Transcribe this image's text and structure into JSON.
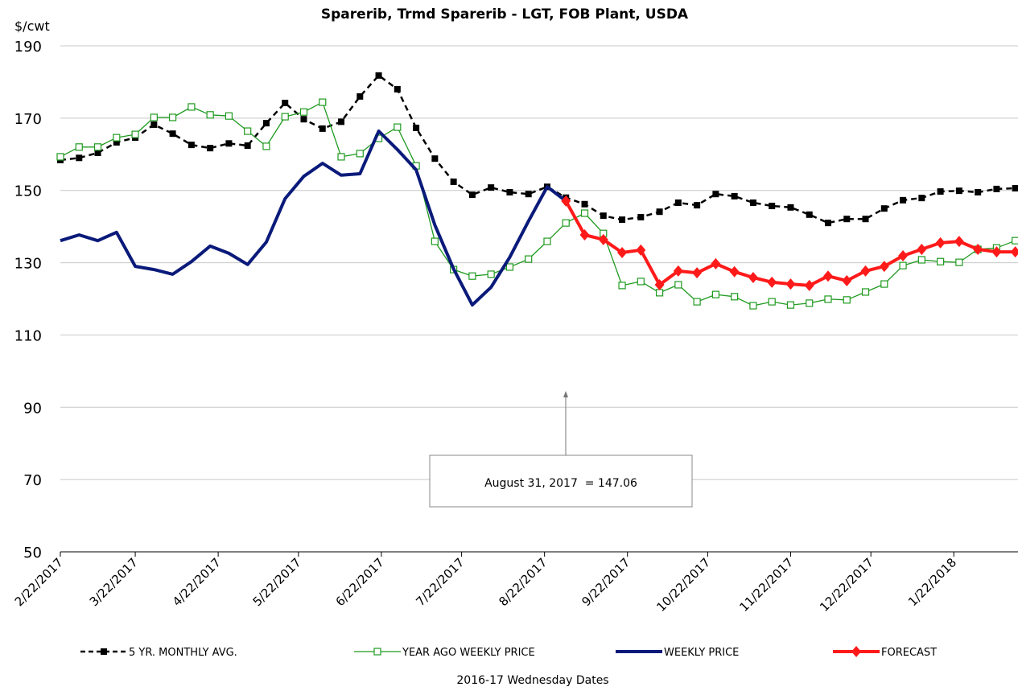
{
  "chart_data": {
    "type": "line",
    "title": "Sparerib, Trmd Sparerib - LGT, FOB Plant, USDA",
    "y_unit_label": "$/cwt",
    "x_axis_title": "2016-17 Wednesday Dates",
    "annotation": "August 31, 2017  = 147.06",
    "x": [
      "2017-02-22",
      "2017-03-01",
      "2017-03-08",
      "2017-03-15",
      "2017-03-22",
      "2017-03-29",
      "2017-04-05",
      "2017-04-12",
      "2017-04-19",
      "2017-04-26",
      "2017-05-03",
      "2017-05-10",
      "2017-05-17",
      "2017-05-24",
      "2017-05-31",
      "2017-06-07",
      "2017-06-14",
      "2017-06-21",
      "2017-06-28",
      "2017-07-05",
      "2017-07-12",
      "2017-07-19",
      "2017-07-26",
      "2017-08-02",
      "2017-08-09",
      "2017-08-16",
      "2017-08-23",
      "2017-08-30",
      "2017-09-06",
      "2017-09-13",
      "2017-09-20",
      "2017-09-27",
      "2017-10-04",
      "2017-10-11",
      "2017-10-18",
      "2017-10-25",
      "2017-11-01",
      "2017-11-08",
      "2017-11-15",
      "2017-11-22",
      "2017-11-29",
      "2017-12-06",
      "2017-12-13",
      "2017-12-20",
      "2017-12-27",
      "2018-01-03",
      "2018-01-10",
      "2018-01-17",
      "2018-01-24",
      "2018-01-31",
      "2018-02-07",
      "2018-02-14"
    ],
    "xlim": [
      "2017-02-22",
      "2018-02-15"
    ],
    "xticks": [
      {
        "value": "2017-02-22",
        "label": "2/22/2017"
      },
      {
        "value": "2017-03-22",
        "label": "3/22/2017"
      },
      {
        "value": "2017-04-22",
        "label": "4/22/2017"
      },
      {
        "value": "2017-05-22",
        "label": "5/22/2017"
      },
      {
        "value": "2017-06-22",
        "label": "6/22/2017"
      },
      {
        "value": "2017-07-22",
        "label": "7/22/2017"
      },
      {
        "value": "2017-08-22",
        "label": "8/22/2017"
      },
      {
        "value": "2017-09-22",
        "label": "9/22/2017"
      },
      {
        "value": "2017-10-22",
        "label": "10/22/2017"
      },
      {
        "value": "2017-11-22",
        "label": "11/22/2017"
      },
      {
        "value": "2017-12-22",
        "label": "12/22/2017"
      },
      {
        "value": "2018-01-22",
        "label": "1/22/2018"
      }
    ],
    "ylim": [
      50,
      190
    ],
    "yticks": [
      50,
      70,
      90,
      110,
      130,
      150,
      170,
      190
    ],
    "grid": true,
    "series": [
      {
        "name": "5 YR. MONTHLY AVG.",
        "color": "#000000",
        "marker": "filled-square",
        "dash": true,
        "values": [
          158.4,
          159,
          160.4,
          163.3,
          164.6,
          168.2,
          165.7,
          162.6,
          161.7,
          163,
          162.4,
          168.6,
          174.2,
          169.7,
          167.1,
          169,
          176,
          181.8,
          178,
          167.3,
          158.8,
          152.4,
          148.8,
          150.8,
          149.5,
          149,
          151,
          148,
          146.2,
          143,
          141.9,
          142.6,
          144.1,
          146.6,
          145.9,
          149,
          148.4,
          146.6,
          145.7,
          145.3,
          143.3,
          141,
          142.1,
          142.1,
          145,
          147.3,
          147.9,
          149.7,
          149.9,
          149.5,
          150.4,
          150.6
        ]
      },
      {
        "name": "YEAR AGO WEEKLY PRICE",
        "color": "#1f9a1f",
        "marker": "open-square",
        "values": [
          159.3,
          162,
          162,
          164.6,
          165.5,
          170.2,
          170.2,
          173.1,
          170.9,
          170.6,
          166.4,
          162.2,
          170.4,
          171.7,
          174.4,
          159.3,
          160.2,
          164.4,
          167.5,
          156.8,
          135.9,
          128.1,
          126.3,
          126.8,
          128.8,
          131,
          135.9,
          141,
          143.7,
          138.1,
          123.7,
          124.8,
          121.7,
          123.9,
          119.2,
          121.2,
          120.6,
          118.1,
          119.2,
          118.3,
          118.8,
          119.9,
          119.7,
          121.9,
          124.1,
          129.2,
          130.8,
          130.3,
          130.1,
          133.7,
          134.1,
          136.1
        ]
      },
      {
        "name": "WEEKLY PRICE",
        "color": "#0a1a7a",
        "marker": "none",
        "values": [
          136.1,
          137.7,
          136.1,
          138.4,
          129,
          128.1,
          126.8,
          130.3,
          134.6,
          132.6,
          129.5,
          135.7,
          147.7,
          153.9,
          157.5,
          154.2,
          154.6,
          166.4,
          161.3,
          155.7,
          140.4,
          128.3,
          118.3,
          123.2,
          131.5,
          141.5,
          151,
          147.06,
          null,
          null,
          null,
          null,
          null,
          null,
          null,
          null,
          null,
          null,
          null,
          null,
          null,
          null,
          null,
          null,
          null,
          null,
          null,
          null,
          null,
          null,
          null,
          null
        ]
      },
      {
        "name": "FORECAST",
        "color": "#ff1a1a",
        "marker": "diamond",
        "values": [
          null,
          null,
          null,
          null,
          null,
          null,
          null,
          null,
          null,
          null,
          null,
          null,
          null,
          null,
          null,
          null,
          null,
          null,
          null,
          null,
          null,
          null,
          null,
          null,
          null,
          null,
          null,
          147.06,
          137.7,
          136.4,
          132.8,
          133.5,
          123.9,
          127.7,
          127.2,
          129.7,
          127.5,
          125.9,
          124.6,
          124.1,
          123.7,
          126.3,
          125,
          127.7,
          129,
          131.9,
          133.7,
          135.5,
          135.9,
          133.7,
          133,
          133
        ]
      }
    ]
  }
}
